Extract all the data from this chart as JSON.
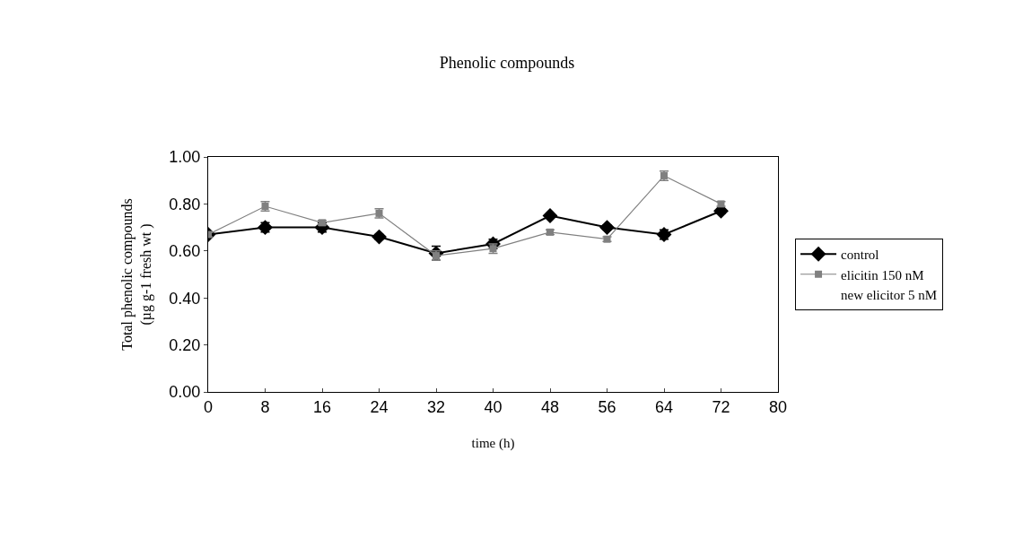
{
  "chart_data": {
    "type": "line",
    "title": "Phenolic compounds",
    "xlabel": "time (h)",
    "ylabel": "Total phenolic compounds\n(µg g-1 fresh wt )",
    "x": [
      0,
      8,
      16,
      24,
      32,
      40,
      48,
      56,
      64,
      72
    ],
    "series": [
      {
        "name": "control",
        "color": "#000000",
        "marker": "diamond",
        "values": [
          0.67,
          0.7,
          0.7,
          0.66,
          0.59,
          0.63,
          0.75,
          0.7,
          0.67,
          0.77
        ],
        "errors": [
          0.01,
          0.02,
          0.02,
          0.01,
          0.03,
          0.02,
          0.01,
          0.01,
          0.02,
          0.01
        ]
      },
      {
        "name": "elicitin 150 nM",
        "color": "#808080",
        "marker": "square",
        "values": [
          0.67,
          0.79,
          0.72,
          0.76,
          0.58,
          0.61,
          0.68,
          0.65,
          0.92,
          0.8
        ],
        "errors": [
          0.01,
          0.02,
          0.01,
          0.02,
          0.02,
          0.02,
          0.01,
          0.01,
          0.02,
          0.01
        ]
      },
      {
        "name": "new elicitor 5 nM",
        "marker": "none",
        "values": [
          null,
          null,
          null,
          null,
          null,
          null,
          null,
          null,
          null,
          null
        ]
      }
    ],
    "xlim": [
      0,
      80
    ],
    "xticks": [
      0,
      8,
      16,
      24,
      32,
      40,
      48,
      56,
      64,
      72,
      80
    ],
    "ylim": [
      0,
      1
    ],
    "yticks": [
      {
        "value": 0,
        "label": "0.00"
      },
      {
        "value": 0.2,
        "label": "0.20"
      },
      {
        "value": 0.4,
        "label": "0.40"
      },
      {
        "value": 0.6,
        "label": "0.60"
      },
      {
        "value": 0.8,
        "label": "0.80"
      },
      {
        "value": 1,
        "label": "1.00"
      }
    ],
    "grid": false,
    "legend": "right",
    "line_style": "solid"
  }
}
